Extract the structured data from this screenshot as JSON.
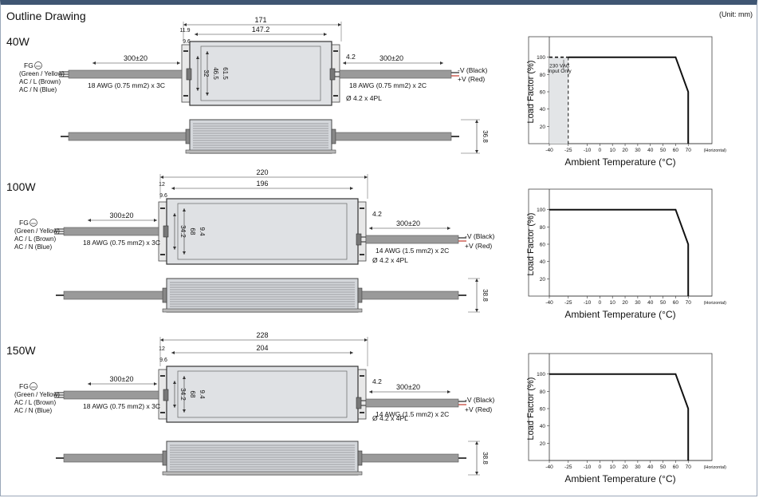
{
  "header": {
    "title": "Outline Drawing",
    "unit": "(Unit: mm)"
  },
  "labels": {
    "fg": "FG",
    "green_yellow": "(Green / Yellow)",
    "ac_l": "AC / L (Brown)",
    "ac_n": "AC / N (Blue)",
    "neg": "-V (Black)",
    "pos": "+V (Red)",
    "lead": "300±20",
    "ylabel": "Load Factor (%)",
    "xlabel": "Ambient Temperature (°C)",
    "horizontal": "(Horizontal)",
    "input_note_1": "230 VAC",
    "input_note_2": "Input Only"
  },
  "sections": [
    {
      "label": "40W",
      "length": "171",
      "body": "147.2",
      "end_a": "11.9",
      "end_b": "9.6",
      "h1": "32",
      "h2": "46.5",
      "h3": "61.5",
      "tab": "4.2",
      "ac_wire": "18 AWG (0.75 mm2) x 3C",
      "dc_wire": "18 AWG (0.75 mm2) x 2C",
      "holes": "Ø 4.2 x 4PL",
      "height": "36.8"
    },
    {
      "label": "100W",
      "length": "220",
      "body": "196",
      "end_a": "12",
      "end_b": "9.6",
      "h1": "34.2",
      "h2": "68",
      "h3": "9.4",
      "tab": "4.2",
      "ac_wire": "18 AWG (0.75 mm2) x 3C",
      "dc_wire": "14 AWG (1.5 mm2) x 2C",
      "holes": "Ø 4.2 x 4PL",
      "height": "38.8"
    },
    {
      "label": "150W",
      "length": "228",
      "body": "204",
      "end_a": "12",
      "end_b": "9.6",
      "h1": "34.2",
      "h2": "68",
      "h3": "9.4",
      "tab": "4.2",
      "ac_wire": "18 AWG (0.75 mm2) x 3C",
      "dc_wire": "14 AWG (1.5 mm2) x 2C",
      "holes": "Ø 4.2 x 4PL",
      "height": "38.8"
    }
  ],
  "chart_data": [
    {
      "type": "line",
      "xlabel": "Ambient Temperature (°C)",
      "ylabel": "Load Factor (%)",
      "xticks": [
        "-40",
        "-25",
        "-10",
        "0",
        "10",
        "20",
        "30",
        "40",
        "50",
        "60",
        "70"
      ],
      "yticks": [
        "20",
        "40",
        "60",
        "80",
        "100"
      ],
      "x": [
        -40,
        60,
        70,
        70
      ],
      "y": [
        100,
        100,
        60,
        0
      ],
      "dashed_region": {
        "x": [
          -40,
          -25
        ],
        "y": 100
      },
      "ylim": [
        0,
        120
      ],
      "xlim": [
        -40,
        85
      ]
    },
    {
      "type": "line",
      "xlabel": "Ambient Temperature (°C)",
      "ylabel": "Load Factor (%)",
      "xticks": [
        "-40",
        "-25",
        "-10",
        "0",
        "10",
        "20",
        "30",
        "40",
        "50",
        "60",
        "70"
      ],
      "yticks": [
        "20",
        "40",
        "60",
        "80",
        "100"
      ],
      "x": [
        -40,
        60,
        70,
        70
      ],
      "y": [
        100,
        100,
        60,
        0
      ],
      "ylim": [
        0,
        120
      ],
      "xlim": [
        -40,
        85
      ]
    },
    {
      "type": "line",
      "xlabel": "Ambient Temperature (°C)",
      "ylabel": "Load Factor (%)",
      "xticks": [
        "-40",
        "-25",
        "-10",
        "0",
        "10",
        "20",
        "30",
        "40",
        "50",
        "60",
        "70"
      ],
      "yticks": [
        "20",
        "40",
        "60",
        "80",
        "100"
      ],
      "x": [
        -40,
        60,
        70,
        70
      ],
      "y": [
        100,
        100,
        60,
        0
      ],
      "ylim": [
        0,
        120
      ],
      "xlim": [
        -40,
        85
      ]
    }
  ]
}
